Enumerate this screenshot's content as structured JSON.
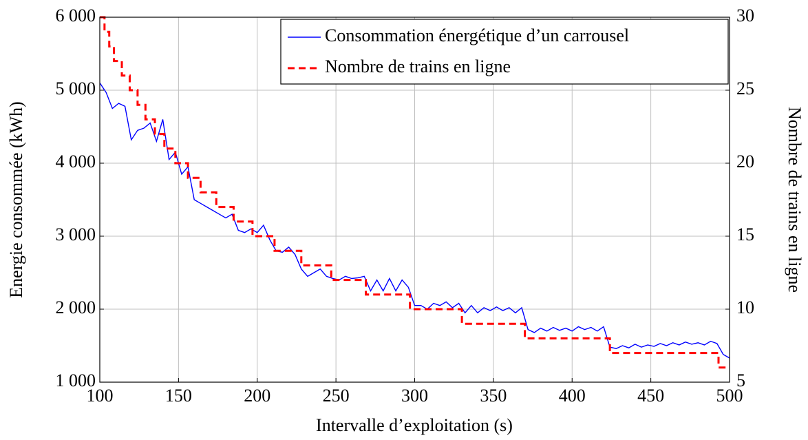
{
  "chart_data": {
    "type": "line",
    "xlabel": "Intervalle d’exploitation (s)",
    "ylabel": "Energie consommée (kWh)",
    "y2label": "Nombre de trains en ligne",
    "xlim": [
      100,
      500
    ],
    "xticks": [
      100,
      150,
      200,
      250,
      300,
      350,
      400,
      450,
      500
    ],
    "ylim": [
      1000,
      6000
    ],
    "yticks": [
      {
        "value": 1000,
        "label": "1 000"
      },
      {
        "value": 2000,
        "label": "2 000"
      },
      {
        "value": 3000,
        "label": "3 000"
      },
      {
        "value": 4000,
        "label": "4 000"
      },
      {
        "value": 5000,
        "label": "5 000"
      },
      {
        "value": 6000,
        "label": "6 000"
      }
    ],
    "y2lim": [
      5,
      30
    ],
    "y2ticks": [
      5,
      10,
      15,
      20,
      25,
      30
    ],
    "grid": true,
    "legend": "top-right",
    "series": [
      {
        "name": "Consommation énergétique d’un carrousel",
        "color": "#0000ff",
        "dash": false,
        "x": [
          100,
          104,
          108,
          112,
          116,
          120,
          124,
          128,
          132,
          136,
          140,
          144,
          148,
          152,
          156,
          160,
          164,
          168,
          172,
          176,
          180,
          184,
          188,
          192,
          196,
          200,
          204,
          208,
          212,
          216,
          220,
          224,
          228,
          232,
          236,
          240,
          244,
          248,
          252,
          256,
          260,
          264,
          268,
          272,
          276,
          280,
          284,
          288,
          292,
          296,
          300,
          304,
          308,
          312,
          316,
          320,
          324,
          328,
          332,
          336,
          340,
          344,
          348,
          352,
          356,
          360,
          364,
          368,
          372,
          376,
          380,
          384,
          388,
          392,
          396,
          400,
          404,
          408,
          412,
          416,
          420,
          424,
          428,
          432,
          436,
          440,
          444,
          448,
          452,
          456,
          460,
          464,
          468,
          472,
          476,
          480,
          484,
          488,
          492,
          496,
          500
        ],
        "values": [
          5100,
          4970,
          4750,
          4820,
          4780,
          4320,
          4450,
          4480,
          4550,
          4300,
          4600,
          4050,
          4150,
          3850,
          3950,
          3500,
          3450,
          3400,
          3350,
          3300,
          3250,
          3300,
          3080,
          3050,
          3100,
          3050,
          3150,
          2950,
          2800,
          2780,
          2850,
          2750,
          2550,
          2450,
          2500,
          2550,
          2450,
          2420,
          2400,
          2450,
          2420,
          2430,
          2450,
          2250,
          2400,
          2250,
          2420,
          2250,
          2400,
          2300,
          2050,
          2050,
          2000,
          2080,
          2050,
          2100,
          2020,
          2080,
          1950,
          2050,
          1950,
          2020,
          1980,
          2030,
          1980,
          2020,
          1950,
          2020,
          1720,
          1680,
          1740,
          1700,
          1750,
          1710,
          1740,
          1700,
          1760,
          1720,
          1750,
          1700,
          1760,
          1480,
          1460,
          1500,
          1470,
          1520,
          1480,
          1510,
          1490,
          1530,
          1500,
          1540,
          1510,
          1550,
          1520,
          1540,
          1510,
          1560,
          1530,
          1380,
          1330
        ]
      },
      {
        "name": "Nombre de trains en ligne",
        "color": "#ff0000",
        "dash": true,
        "step": true,
        "axis": "y2",
        "x": [
          100,
          103,
          106,
          109,
          114,
          119,
          124,
          129,
          135,
          141,
          148,
          156,
          164,
          174,
          185,
          197,
          211,
          228,
          247,
          269,
          297,
          330,
          370,
          424,
          493,
          500
        ],
        "values": [
          30,
          29,
          28,
          27,
          26,
          25,
          24,
          23,
          22,
          21,
          20,
          19,
          18,
          17,
          16,
          15,
          14,
          13,
          12,
          11,
          10,
          9,
          8,
          7,
          6,
          6
        ]
      }
    ]
  }
}
